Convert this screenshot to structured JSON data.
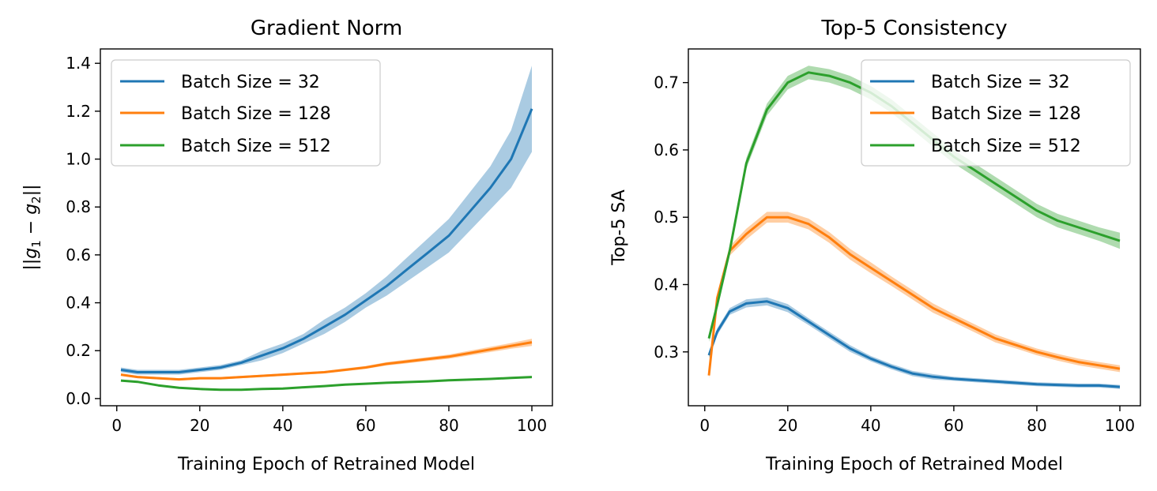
{
  "chart_data": [
    {
      "type": "line",
      "title": "Gradient Norm",
      "xlabel": "Training Epoch of Retrained Model",
      "ylabel_parts": [
        "||",
        "g",
        "1",
        " − ",
        "g",
        "2",
        "||"
      ],
      "xlim": [
        -3.95,
        104.95
      ],
      "ylim": [
        -0.03,
        1.46
      ],
      "xticks": [
        0,
        20,
        40,
        60,
        80,
        100
      ],
      "xtick_labels": [
        "0",
        "20",
        "40",
        "60",
        "80",
        "100"
      ],
      "yticks": [
        0.0,
        0.2,
        0.4,
        0.6,
        0.8,
        1.0,
        1.2,
        1.4
      ],
      "ytick_labels": [
        "0.0",
        "0.2",
        "0.4",
        "0.6",
        "0.8",
        "1.0",
        "1.2",
        "1.4"
      ],
      "legend_position": "top-left",
      "grid": false,
      "shaded_band": "variability band around each series",
      "series": [
        {
          "name": "Batch Size = 32",
          "color": "#1f77b4",
          "x": [
            1,
            5,
            10,
            15,
            20,
            25,
            30,
            35,
            40,
            45,
            50,
            55,
            60,
            65,
            70,
            75,
            80,
            85,
            90,
            95,
            100
          ],
          "values": [
            0.12,
            0.11,
            0.11,
            0.11,
            0.12,
            0.13,
            0.15,
            0.18,
            0.21,
            0.25,
            0.3,
            0.35,
            0.41,
            0.47,
            0.54,
            0.61,
            0.68,
            0.78,
            0.88,
            1.0,
            1.21
          ],
          "band": [
            0.01,
            0.01,
            0.01,
            0.01,
            0.01,
            0.01,
            0.01,
            0.02,
            0.02,
            0.02,
            0.03,
            0.03,
            0.03,
            0.04,
            0.05,
            0.06,
            0.07,
            0.08,
            0.09,
            0.12,
            0.18
          ]
        },
        {
          "name": "Batch Size = 128",
          "color": "#ff7f0e",
          "x": [
            1,
            5,
            10,
            15,
            20,
            25,
            30,
            35,
            40,
            45,
            50,
            55,
            60,
            65,
            70,
            75,
            80,
            85,
            90,
            95,
            100
          ],
          "values": [
            0.1,
            0.09,
            0.085,
            0.08,
            0.085,
            0.085,
            0.09,
            0.095,
            0.1,
            0.105,
            0.11,
            0.12,
            0.13,
            0.145,
            0.155,
            0.165,
            0.175,
            0.19,
            0.205,
            0.22,
            0.235
          ],
          "band": [
            0.005,
            0.005,
            0.005,
            0.005,
            0.005,
            0.005,
            0.005,
            0.005,
            0.005,
            0.005,
            0.005,
            0.006,
            0.006,
            0.007,
            0.008,
            0.008,
            0.009,
            0.01,
            0.011,
            0.012,
            0.015
          ]
        },
        {
          "name": "Batch Size = 512",
          "color": "#2ca02c",
          "x": [
            1,
            5,
            10,
            15,
            20,
            25,
            30,
            35,
            40,
            45,
            50,
            55,
            60,
            65,
            70,
            75,
            80,
            85,
            90,
            95,
            100
          ],
          "values": [
            0.075,
            0.07,
            0.055,
            0.045,
            0.04,
            0.037,
            0.037,
            0.04,
            0.042,
            0.047,
            0.052,
            0.058,
            0.062,
            0.066,
            0.069,
            0.072,
            0.076,
            0.079,
            0.082,
            0.086,
            0.09
          ],
          "band": [
            0.004,
            0.004,
            0.003,
            0.003,
            0.003,
            0.003,
            0.003,
            0.003,
            0.003,
            0.003,
            0.003,
            0.003,
            0.003,
            0.003,
            0.003,
            0.003,
            0.003,
            0.003,
            0.003,
            0.003,
            0.004
          ]
        }
      ]
    },
    {
      "type": "line",
      "title": "Top-5 Consistency",
      "xlabel": "Training Epoch of Retrained Model",
      "ylabel": "Top-5 SA",
      "xlim": [
        -3.95,
        104.95
      ],
      "ylim": [
        0.22,
        0.75
      ],
      "xticks": [
        0,
        20,
        40,
        60,
        80,
        100
      ],
      "xtick_labels": [
        "0",
        "20",
        "40",
        "60",
        "80",
        "100"
      ],
      "yticks": [
        0.3,
        0.4,
        0.5,
        0.6,
        0.7
      ],
      "ytick_labels": [
        "0.3",
        "0.4",
        "0.5",
        "0.6",
        "0.7"
      ],
      "legend_position": "top-right",
      "grid": false,
      "shaded_band": "variability band around each series",
      "series": [
        {
          "name": "Batch Size = 32",
          "color": "#1f77b4",
          "x": [
            1,
            3,
            6,
            10,
            15,
            20,
            25,
            30,
            35,
            40,
            45,
            50,
            55,
            60,
            65,
            70,
            75,
            80,
            85,
            90,
            95,
            100
          ],
          "values": [
            0.295,
            0.33,
            0.36,
            0.372,
            0.375,
            0.365,
            0.345,
            0.325,
            0.305,
            0.29,
            0.278,
            0.268,
            0.263,
            0.26,
            0.258,
            0.256,
            0.254,
            0.252,
            0.251,
            0.25,
            0.25,
            0.248
          ],
          "band": [
            0.004,
            0.005,
            0.005,
            0.006,
            0.006,
            0.006,
            0.005,
            0.005,
            0.005,
            0.004,
            0.004,
            0.004,
            0.004,
            0.003,
            0.003,
            0.003,
            0.003,
            0.003,
            0.003,
            0.003,
            0.003,
            0.003
          ]
        },
        {
          "name": "Batch Size = 128",
          "color": "#ff7f0e",
          "x": [
            1,
            3,
            6,
            10,
            15,
            20,
            25,
            30,
            35,
            40,
            45,
            50,
            55,
            60,
            65,
            70,
            75,
            80,
            85,
            90,
            95,
            100
          ],
          "values": [
            0.265,
            0.38,
            0.45,
            0.475,
            0.5,
            0.5,
            0.49,
            0.47,
            0.445,
            0.425,
            0.405,
            0.385,
            0.365,
            0.35,
            0.335,
            0.32,
            0.31,
            0.3,
            0.292,
            0.285,
            0.28,
            0.275
          ],
          "band": [
            0.005,
            0.006,
            0.007,
            0.008,
            0.008,
            0.008,
            0.008,
            0.008,
            0.008,
            0.008,
            0.007,
            0.007,
            0.007,
            0.006,
            0.006,
            0.006,
            0.005,
            0.005,
            0.005,
            0.005,
            0.005,
            0.005
          ]
        },
        {
          "name": "Batch Size = 512",
          "color": "#2ca02c",
          "x": [
            1,
            3,
            6,
            10,
            15,
            20,
            25,
            30,
            35,
            40,
            45,
            50,
            55,
            60,
            65,
            70,
            75,
            80,
            85,
            90,
            95,
            100
          ],
          "values": [
            0.32,
            0.37,
            0.45,
            0.58,
            0.66,
            0.7,
            0.715,
            0.71,
            0.7,
            0.685,
            0.665,
            0.64,
            0.615,
            0.59,
            0.57,
            0.55,
            0.53,
            0.51,
            0.495,
            0.485,
            0.475,
            0.465
          ],
          "band": [
            0.005,
            0.006,
            0.007,
            0.008,
            0.009,
            0.01,
            0.01,
            0.01,
            0.01,
            0.01,
            0.01,
            0.01,
            0.01,
            0.01,
            0.01,
            0.01,
            0.01,
            0.01,
            0.01,
            0.01,
            0.01,
            0.012
          ]
        }
      ]
    }
  ]
}
